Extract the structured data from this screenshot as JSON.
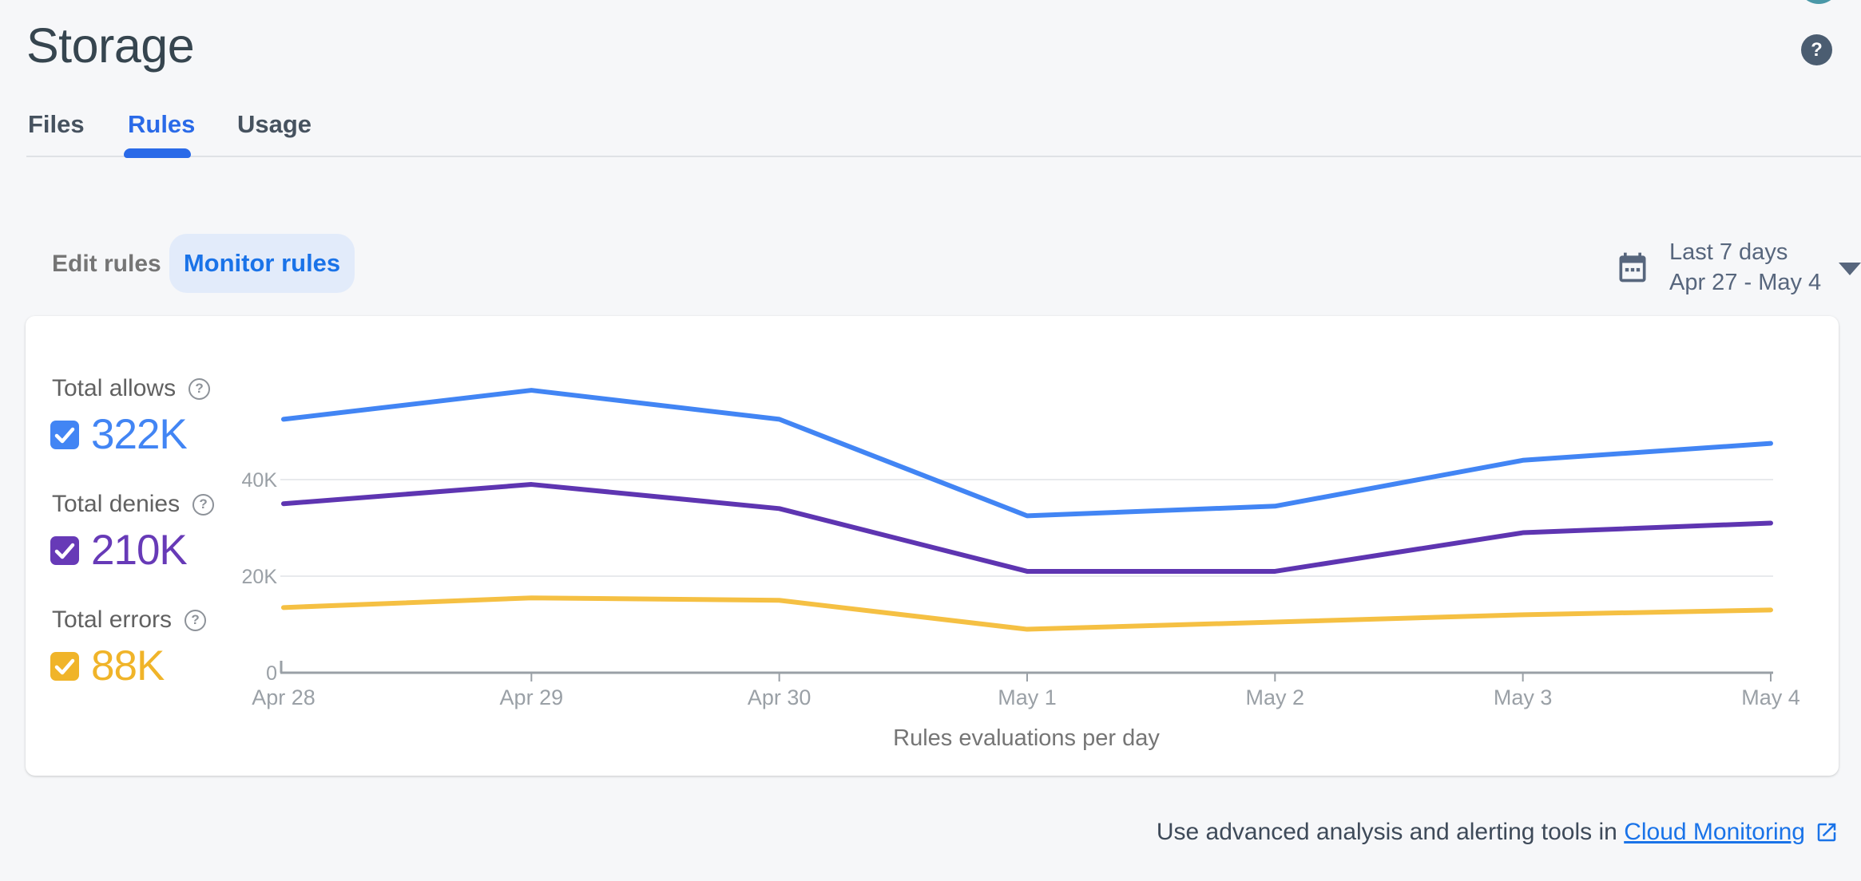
{
  "page": {
    "title": "Storage"
  },
  "topbar": {
    "help_glyph": "?"
  },
  "tabs": [
    {
      "label": "Files",
      "active": false
    },
    {
      "label": "Rules",
      "active": true
    },
    {
      "label": "Usage",
      "active": false
    }
  ],
  "controls": {
    "edit_rules_label": "Edit rules",
    "monitor_rules_label": "Monitor rules"
  },
  "date_range": {
    "preset": "Last 7 days",
    "range": "Apr 27 - May 4"
  },
  "legend": [
    {
      "label": "Total allows",
      "value": "322K",
      "color": "#4285f4",
      "checked": true
    },
    {
      "label": "Total denies",
      "value": "210K",
      "color": "#673ab7",
      "checked": true
    },
    {
      "label": "Total errors",
      "value": "88K",
      "color": "#f0b429",
      "checked": true
    }
  ],
  "chart_data": {
    "type": "line",
    "title": "Rules evaluations per day",
    "x": [
      "Apr 28",
      "Apr 29",
      "Apr 30",
      "May 1",
      "May 2",
      "May 3",
      "May 4"
    ],
    "series": [
      {
        "name": "Total allows",
        "color": "#4285f4",
        "values": [
          52500,
          58500,
          52500,
          32500,
          34500,
          44000,
          47500
        ]
      },
      {
        "name": "Total denies",
        "color": "#5e35b1",
        "values": [
          35000,
          39000,
          34000,
          21000,
          21000,
          29000,
          31000
        ]
      },
      {
        "name": "Total errors",
        "color": "#f5c043",
        "values": [
          13500,
          15500,
          15000,
          9000,
          10500,
          12000,
          13000
        ]
      }
    ],
    "ylim": [
      0,
      66000
    ],
    "yticks": [
      {
        "v": 0,
        "label": "0"
      },
      {
        "v": 20000,
        "label": "20K"
      },
      {
        "v": 40000,
        "label": "40K"
      }
    ],
    "grid": true,
    "legend_position": "left",
    "grid_color": "#e8eaed",
    "axis_color": "#9aa0a6",
    "tick_label_color": "#9aa0a6",
    "title_color": "#757575"
  },
  "footer": {
    "text": "Use advanced analysis and alerting tools in",
    "link_label": "Cloud Monitoring"
  }
}
